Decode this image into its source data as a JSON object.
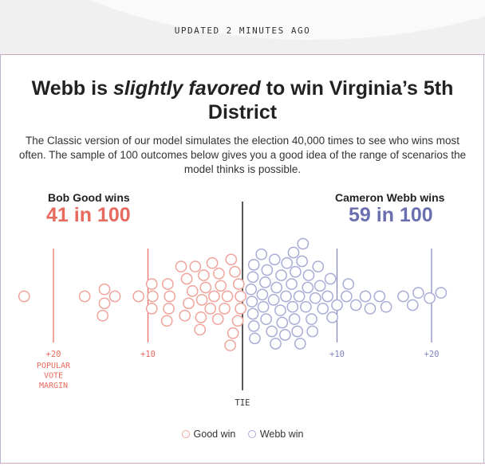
{
  "header": {
    "updated": "UPDATED 2 MINUTES AGO"
  },
  "headline": {
    "prefix": "Webb is ",
    "emphasis": "slightly favored",
    "suffix": " to win Virginia’s 5th District"
  },
  "description": "The Classic version of our model simulates the election 40,000 times to see who wins most often. The sample of 100 outcomes below gives you a good idea of the range of scenarios the model thinks is possible.",
  "candidates": {
    "good": {
      "label": "Bob Good wins",
      "value": "41 in 100",
      "color": "#e76a5e"
    },
    "webb": {
      "label": "Cameron Webb wins",
      "value": "59 in 100",
      "color": "#6a6fb0"
    }
  },
  "legend": {
    "good_label": "Good win",
    "webb_label": "Webb win"
  },
  "colors": {
    "good_stroke": "#f0a49b",
    "webb_stroke": "#a9acd6",
    "good_axis": "#e76a5e",
    "webb_axis": "#7f83bf",
    "tie_line": "#222222"
  },
  "chart_data": {
    "type": "scatter",
    "title": "",
    "xlabel": "",
    "ylabel": "",
    "xlim": [
      -25,
      24
    ],
    "tie_label": "TIE",
    "ticks": [
      {
        "value": -20,
        "label": "+20",
        "side": "good"
      },
      {
        "value": -10,
        "label": "+10",
        "side": "good"
      },
      {
        "value": 10,
        "label": "+10",
        "side": "webb"
      },
      {
        "value": 20,
        "label": "+20",
        "side": "webb"
      }
    ],
    "axis_caption": [
      "POPULAR",
      "VOTE",
      "MARGIN"
    ],
    "series": [
      {
        "name": "Good win",
        "outcome": "good",
        "values": [
          -23.1,
          -16.7,
          -14.8,
          -14.6,
          -14.6,
          -13.5,
          -11.0,
          -9.6,
          -9.6,
          -9.5,
          -8.0,
          -7.9,
          -7.8,
          -7.7,
          -6.5,
          -6.1,
          -5.9,
          -5.7,
          -5.3,
          -5.0,
          -4.5,
          -4.4,
          -4.3,
          -4.1,
          -3.9,
          -3.4,
          -3.2,
          -3.0,
          -2.6,
          -2.5,
          -2.3,
          -1.9,
          -1.6,
          -1.3,
          -1.2,
          -1.0,
          -0.8,
          -0.5,
          -0.4,
          -0.2,
          -0.2
        ]
      },
      {
        "name": "Webb win",
        "outcome": "webb",
        "values": [
          0.9,
          1.0,
          1.1,
          1.1,
          1.2,
          1.2,
          1.3,
          2.0,
          2.1,
          2.2,
          2.4,
          2.5,
          2.6,
          3.1,
          3.3,
          3.4,
          3.5,
          3.6,
          4.0,
          4.1,
          4.2,
          4.5,
          4.6,
          4.7,
          5.2,
          5.3,
          5.4,
          5.5,
          5.6,
          5.8,
          6.0,
          6.1,
          6.3,
          6.4,
          6.7,
          6.9,
          7.0,
          7.3,
          7.4,
          7.7,
          8.0,
          8.2,
          8.5,
          9.0,
          9.3,
          9.5,
          10.0,
          11.0,
          11.2,
          12.0,
          13.0,
          13.5,
          14.5,
          15.2,
          17.0,
          18.0,
          18.6,
          19.8,
          21.0
        ]
      }
    ]
  }
}
